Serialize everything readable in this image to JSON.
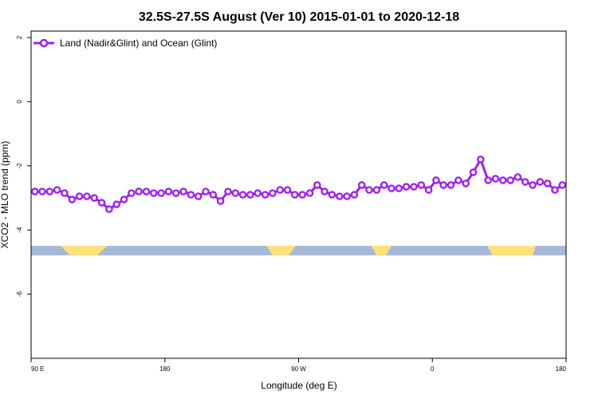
{
  "chart_data": {
    "type": "line",
    "title": "32.5S-27.5S August (Ver 10)   2015-01-01 to 2020-12-18",
    "xlabel": "Longitude (deg E)",
    "ylabel": "XCO2 - MLO trend (ppm)",
    "xlim": [
      90,
      450
    ],
    "ylim": [
      -8,
      2.2
    ],
    "x_ticks": [
      {
        "value": 90,
        "label": "90 E"
      },
      {
        "value": 180,
        "label": "180"
      },
      {
        "value": 270,
        "label": "90 W"
      },
      {
        "value": 360,
        "label": "0"
      },
      {
        "value": 450,
        "label": "180"
      }
    ],
    "y_ticks": [
      {
        "value": 2,
        "label": "2"
      },
      {
        "value": 0,
        "label": "0"
      },
      {
        "value": -2,
        "label": "-2"
      },
      {
        "value": -4,
        "label": "-4"
      },
      {
        "value": -6,
        "label": "-6"
      }
    ],
    "legend_position": "top-left",
    "series": [
      {
        "name": "Land (Nadir&Glint) and Ocean (Glint)",
        "color": "#a020f0",
        "x": [
          92.5,
          97.5,
          102.5,
          107.5,
          112.5,
          117.5,
          122.5,
          127.5,
          132.5,
          137.5,
          142.5,
          147.5,
          152.5,
          157.5,
          162.5,
          167.5,
          172.5,
          177.5,
          182.5,
          187.5,
          192.5,
          197.5,
          202.5,
          207.5,
          212.5,
          217.5,
          222.5,
          227.5,
          232.5,
          237.5,
          242.5,
          247.5,
          252.5,
          257.5,
          262.5,
          267.5,
          272.5,
          277.5,
          282.5,
          287.5,
          292.5,
          297.5,
          302.5,
          307.5,
          312.5,
          317.5,
          322.5,
          327.5,
          332.5,
          337.5,
          342.5,
          347.5,
          352.5,
          357.5,
          362.5,
          367.5,
          372.5,
          377.5,
          382.5,
          387.5,
          392.5,
          397.5,
          402.5,
          407.5,
          412.5,
          417.5,
          422.5,
          427.5,
          432.5,
          437.5,
          442.5,
          447.5
        ],
        "y": [
          -2.8,
          -2.8,
          -2.8,
          -2.75,
          -2.85,
          -3.05,
          -2.95,
          -2.95,
          -3.0,
          -3.15,
          -3.35,
          -3.2,
          -3.05,
          -2.85,
          -2.8,
          -2.8,
          -2.85,
          -2.85,
          -2.8,
          -2.85,
          -2.8,
          -2.9,
          -2.95,
          -2.8,
          -2.9,
          -3.1,
          -2.8,
          -2.85,
          -2.9,
          -2.9,
          -2.85,
          -2.9,
          -2.85,
          -2.75,
          -2.75,
          -2.9,
          -2.9,
          -2.85,
          -2.6,
          -2.8,
          -2.9,
          -2.95,
          -2.95,
          -2.9,
          -2.6,
          -2.75,
          -2.75,
          -2.6,
          -2.7,
          -2.7,
          -2.65,
          -2.65,
          -2.6,
          -2.75,
          -2.45,
          -2.6,
          -2.6,
          -2.45,
          -2.55,
          -2.2,
          -1.8,
          -2.45,
          -2.4,
          -2.45,
          -2.45,
          -2.35,
          -2.5,
          -2.6,
          -2.5,
          -2.55,
          -2.75,
          -2.6
        ]
      }
    ]
  },
  "strip": {
    "ocean_color": "#a7b9d8",
    "land_color": "#ffe07a"
  }
}
